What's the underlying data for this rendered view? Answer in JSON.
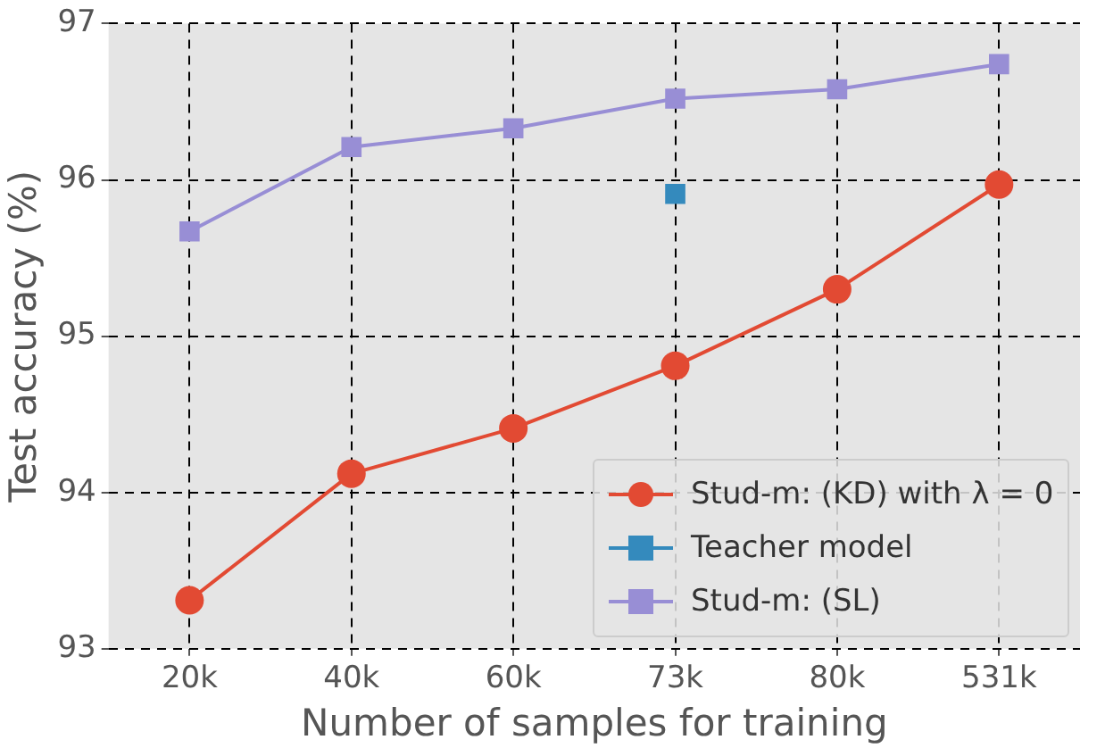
{
  "chart_data": {
    "type": "line",
    "xlabel": "Number of samples for training",
    "ylabel": "Test accuracy (%)",
    "categories": [
      "20k",
      "40k",
      "60k",
      "73k",
      "80k",
      "531k"
    ],
    "ylim": [
      93,
      97
    ],
    "yticks": [
      93,
      94,
      95,
      96,
      97
    ],
    "grid": true,
    "legend": "bottom right",
    "series": [
      {
        "name": "Stud-m: (KD) with λ = 0",
        "color": "#e24a33",
        "marker": "circle",
        "values": [
          93.31,
          94.12,
          94.41,
          94.81,
          95.3,
          95.97
        ]
      },
      {
        "name": "Teacher model",
        "color": "#348abd",
        "type": "scatter",
        "marker": "square",
        "x": [
          "73k"
        ],
        "values": [
          95.91
        ]
      },
      {
        "name": "Stud-m: (SL)",
        "color": "#988ed5",
        "marker": "square",
        "values": [
          95.67,
          96.21,
          96.33,
          96.52,
          96.58,
          96.74
        ]
      }
    ]
  }
}
